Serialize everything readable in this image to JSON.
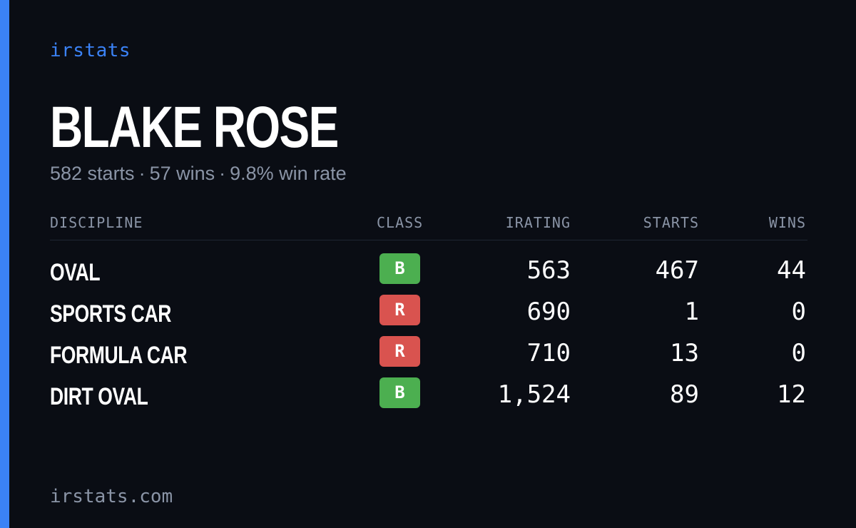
{
  "brand": "irstats",
  "driver": {
    "name": "BLAKE ROSE",
    "starts_text": "582 starts",
    "wins_text": "57 wins",
    "winrate_text": "9.8% win rate",
    "separator": "·"
  },
  "table": {
    "headers": {
      "discipline": "DISCIPLINE",
      "class": "CLASS",
      "irating": "IRATING",
      "starts": "STARTS",
      "wins": "WINS"
    },
    "rows": [
      {
        "discipline": "OVAL",
        "class": "B",
        "class_color": "#4caf50",
        "irating": "563",
        "starts": "467",
        "wins": "44"
      },
      {
        "discipline": "SPORTS CAR",
        "class": "R",
        "class_color": "#d9534f",
        "irating": "690",
        "starts": "1",
        "wins": "0"
      },
      {
        "discipline": "FORMULA CAR",
        "class": "R",
        "class_color": "#d9534f",
        "irating": "710",
        "starts": "13",
        "wins": "0"
      },
      {
        "discipline": "DIRT OVAL",
        "class": "B",
        "class_color": "#4caf50",
        "irating": "1,524",
        "starts": "89",
        "wins": "12"
      }
    ]
  },
  "footer": {
    "url": "irstats.com"
  },
  "colors": {
    "background": "#0a0d14",
    "accent": "#3b82f6",
    "muted": "#8a94a6",
    "class_b": "#4caf50",
    "class_r": "#d9534f"
  }
}
